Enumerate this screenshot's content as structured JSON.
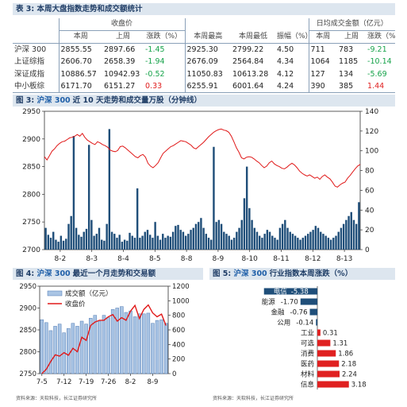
{
  "table3": {
    "title": "表 3: 本周大盘指数走势和成交额统计",
    "group_close": "收盘价",
    "group_turnover": "日均成交金额（亿元）",
    "headers": [
      "本周",
      "上周",
      "涨跌（%）",
      "本周最高",
      "本周最低",
      "振幅（%）",
      "本周",
      "上周",
      "涨跌（%）"
    ],
    "rows": [
      {
        "name": "沪深 300",
        "cells": [
          "2855.55",
          "2897.66",
          "-1.45",
          "2925.30",
          "2799.22",
          "4.50",
          "711",
          "783",
          "-9.21"
        ],
        "signs": [
          "",
          "",
          "neg",
          "",
          "",
          "",
          "",
          "",
          "neg"
        ]
      },
      {
        "name": "上证综指",
        "cells": [
          "2606.70",
          "2658.39",
          "-1.94",
          "2676.09",
          "2564.84",
          "4.34",
          "1064",
          "1185",
          "-10.14"
        ],
        "signs": [
          "",
          "",
          "neg",
          "",
          "",
          "",
          "",
          "",
          "neg"
        ]
      },
      {
        "name": "深证成指",
        "cells": [
          "10886.57",
          "10942.93",
          "-0.52",
          "11050.83",
          "10613.28",
          "4.12",
          "127",
          "134",
          "-5.69"
        ],
        "signs": [
          "",
          "",
          "neg",
          "",
          "",
          "",
          "",
          "",
          "neg"
        ]
      },
      {
        "name": "中小板综",
        "cells": [
          "6171.70",
          "6151.27",
          "0.33",
          "6255.91",
          "6001.64",
          "4.24",
          "390",
          "385",
          "1.44"
        ],
        "signs": [
          "",
          "",
          "pos",
          "",
          "",
          "",
          "",
          "",
          "pos"
        ]
      }
    ]
  },
  "chart3": {
    "title_prefix": "图 3: ",
    "title_hl": "沪深 300",
    "title_rest": "近 10 天走势和成交量万股（分钟线）"
  },
  "chart4": {
    "title_prefix": "图 4: ",
    "title_hl": "沪深 300",
    "title_rest": "最近一个月走势和交易额"
  },
  "chart5": {
    "title_prefix": "图 5: ",
    "title_hl": "沪深 300",
    "title_rest": "行业指数本周涨跌（%）"
  },
  "source4": "资料来源：天软科技，长江证券研究所",
  "source5": "资料来源：天软科技，长江证券研究所",
  "colors": {
    "price_line": "#e01818",
    "volume_bar": "#1f4e79",
    "pos_bar": "#e02020",
    "neg_bar": "#1f4e79",
    "band": "#dde6ef"
  },
  "chart_data": [
    {
      "type": "bar+line",
      "title": "",
      "x_ticks": [
        "8-2",
        "8-3",
        "8-4",
        "8-5",
        "8-8",
        "8-9",
        "8-10",
        "8-11",
        "8-12",
        "8-13"
      ],
      "y_left_ticks": [
        2700,
        2750,
        2800,
        2850,
        2900,
        2950
      ],
      "y_left_range": [
        2700,
        2950
      ],
      "y_right_ticks": [
        0,
        20,
        40,
        60,
        80,
        100,
        120,
        140
      ],
      "y_right_range": [
        0,
        140
      ],
      "series": [
        {
          "kind": "line",
          "axis": "left",
          "values": [
            2868,
            2862,
            2870,
            2878,
            2882,
            2888,
            2892,
            2895,
            2896,
            2899,
            2902,
            2903,
            2905,
            2908,
            2905,
            2910,
            2903,
            2898,
            2895,
            2892,
            2890,
            2895,
            2893,
            2890,
            2888,
            2885,
            2880,
            2878,
            2877,
            2879,
            2886,
            2887,
            2884,
            2880,
            2876,
            2872,
            2868,
            2866,
            2870,
            2872,
            2867,
            2856,
            2851,
            2848,
            2852,
            2857,
            2866,
            2874,
            2878,
            2882,
            2886,
            2888,
            2891,
            2894,
            2897,
            2896,
            2895,
            2892,
            2889,
            2884,
            2882,
            2886,
            2890,
            2894,
            2899,
            2904,
            2908,
            2912,
            2915,
            2917,
            2918,
            2916,
            2915,
            2912,
            2905,
            2895,
            2884,
            2876,
            2866,
            2864,
            2867,
            2868,
            2867,
            2864,
            2860,
            2857,
            2852,
            2848,
            2851,
            2857,
            2860,
            2855,
            2852,
            2850,
            2847,
            2846,
            2849,
            2853,
            2856,
            2853,
            2848,
            2842,
            2838,
            2835,
            2833,
            2835,
            2832,
            2829,
            2831,
            2827,
            2832,
            2835,
            2831,
            2828,
            2822,
            2815,
            2813,
            2817,
            2820,
            2822,
            2829,
            2834,
            2840,
            2846,
            2851,
            2854
          ]
        },
        {
          "kind": "bar",
          "axis": "right",
          "values": [
            22,
            15,
            12,
            18,
            10,
            8,
            14,
            9,
            11,
            26,
            34,
            115,
            22,
            15,
            13,
            18,
            21,
            106,
            30,
            14,
            16,
            22,
            10,
            9,
            26,
            122,
            18,
            16,
            12,
            15,
            8,
            10,
            9,
            17,
            14,
            12,
            62,
            12,
            14,
            18,
            20,
            15,
            12,
            28,
            14,
            10,
            16,
            12,
            14,
            13,
            18,
            24,
            25,
            20,
            18,
            14,
            16,
            20,
            22,
            26,
            28,
            32,
            22,
            16,
            12,
            10,
            104,
            28,
            30,
            26,
            18,
            16,
            14,
            10,
            12,
            18,
            22,
            30,
            52,
            84,
            42,
            30,
            22,
            18,
            14,
            12,
            16,
            20,
            18,
            14,
            12,
            10,
            22,
            26,
            30,
            22,
            18,
            16,
            14,
            12,
            10,
            12,
            14,
            16,
            18,
            20,
            24,
            22,
            18,
            16,
            14,
            12,
            10,
            12,
            14,
            18,
            22,
            26,
            30,
            34,
            38,
            30,
            26,
            48
          ]
        }
      ]
    },
    {
      "type": "bar+line",
      "title": "",
      "x_ticks": [
        "7-5",
        "7-12",
        "7-19",
        "7-26",
        "8-2",
        "8-9"
      ],
      "y_left_ticks": [
        2750,
        2800,
        2850,
        2900,
        2950
      ],
      "y_left_range": [
        2750,
        2950
      ],
      "y_right_ticks": [
        0,
        200,
        400,
        600,
        800,
        1000,
        1200
      ],
      "y_right_range": [
        0,
        1200
      ],
      "legend": [
        "成交额（亿元）",
        "收盘价"
      ],
      "series": [
        {
          "name": "成交额（亿元）",
          "kind": "bar",
          "axis": "right",
          "values": [
            740,
            700,
            590,
            650,
            680,
            560,
            620,
            690,
            650,
            720,
            680,
            760,
            800,
            720,
            800,
            770,
            880,
            900,
            920,
            840,
            860,
            780,
            820,
            820,
            830,
            690,
            730,
            740,
            690
          ]
        },
        {
          "name": "收盘价",
          "kind": "line",
          "axis": "left",
          "values": [
            2750,
            2760,
            2778,
            2793,
            2790,
            2798,
            2792,
            2808,
            2800,
            2833,
            2826,
            2860,
            2868,
            2872,
            2872,
            2880,
            2885,
            2870,
            2878,
            2872,
            2893,
            2906,
            2876,
            2897,
            2907,
            2889,
            2880,
            2886,
            2860
          ]
        }
      ]
    },
    {
      "type": "bar",
      "title": "",
      "orientation": "horizontal",
      "categories": [
        "电信",
        "能源",
        "金融",
        "公用",
        "工业",
        "可选",
        "消费",
        "医药",
        "材料",
        "信息"
      ],
      "values": [
        -5.38,
        -1.7,
        -0.76,
        -0.14,
        0.31,
        1.31,
        1.86,
        2.18,
        2.24,
        3.18
      ],
      "value_labels": [
        "-5.38",
        "-1.70",
        "-0.76",
        "-0.14",
        "0.31",
        "1.31",
        "1.86",
        "2.18",
        "2.24",
        "3.18"
      ]
    }
  ]
}
